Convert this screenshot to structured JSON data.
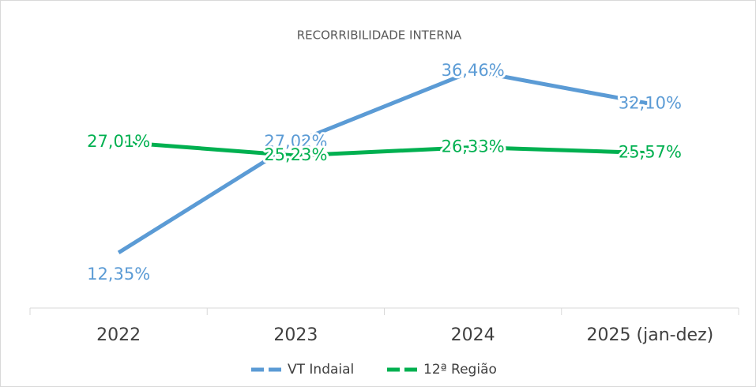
{
  "chart_data": {
    "type": "line",
    "title": "RECORRIBILIDADE INTERNA",
    "categories": [
      "2022",
      "2023",
      "2024",
      "2025 (jan-dez)"
    ],
    "series": [
      {
        "name": "VT Indaial",
        "color": "#5b9bd5",
        "values": [
          12.35,
          27.02,
          36.46,
          32.1
        ],
        "value_labels": [
          "12,35%",
          "27,02%",
          "36,46%",
          "32,10%"
        ]
      },
      {
        "name": "12ª Região",
        "color": "#00b050",
        "values": [
          27.01,
          25.23,
          26.33,
          25.57
        ],
        "value_labels": [
          "27,01%",
          "25,23%",
          "26,33%",
          "25,57%"
        ]
      }
    ],
    "ylim": [
      5,
      40
    ],
    "legend": "bottom"
  }
}
